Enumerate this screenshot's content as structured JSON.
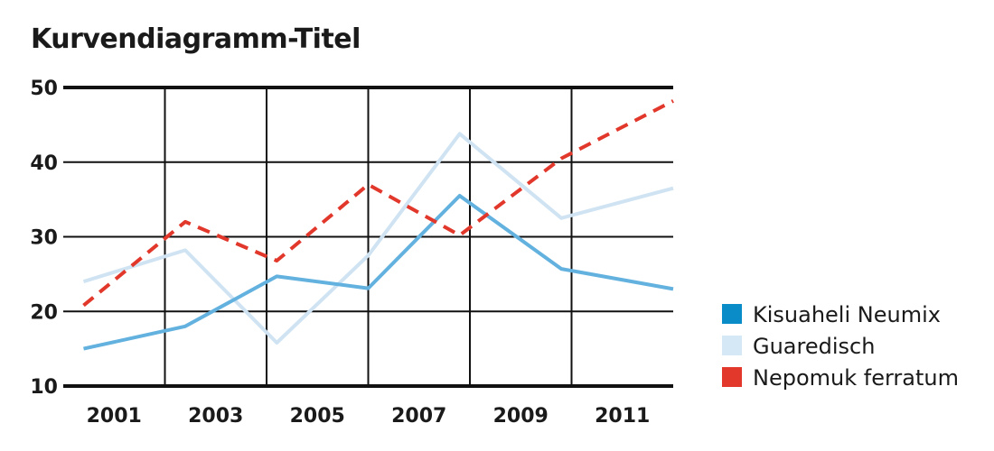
{
  "chart_data": {
    "type": "line",
    "title": "Kurvendiagramm-Titel",
    "xlabel": "",
    "ylabel": "",
    "x": [
      2000.4,
      2002.4,
      2004.2,
      2006.0,
      2007.8,
      2009.8,
      2012.0
    ],
    "x_tick_labels": [
      "2001",
      "2003",
      "2005",
      "2007",
      "2009",
      "2011"
    ],
    "xlim": [
      2000.0,
      2012.0
    ],
    "ylim": [
      10,
      50
    ],
    "y_ticks": [
      10,
      20,
      30,
      40,
      50
    ],
    "grid": true,
    "legend_position": "right",
    "series": [
      {
        "name": "Kisuaheli Neumix",
        "color": "#62b1de",
        "legend_color": "#0a8cc8",
        "dash": false,
        "values": [
          15,
          18,
          24.7,
          23.1,
          35.5,
          25.7,
          23
        ]
      },
      {
        "name": "Guaredisch",
        "color": "#cfe3f3",
        "legend_color": "#d4e8f6",
        "dash": false,
        "values": [
          24,
          28.2,
          15.8,
          27.5,
          43.8,
          32.5,
          36.5
        ]
      },
      {
        "name": "Nepomuk ferratum",
        "color": "#e2382c",
        "legend_color": "#e2382c",
        "dash": true,
        "values": [
          20.8,
          32,
          26.8,
          37,
          30.2,
          40.5,
          48.2
        ]
      }
    ]
  }
}
